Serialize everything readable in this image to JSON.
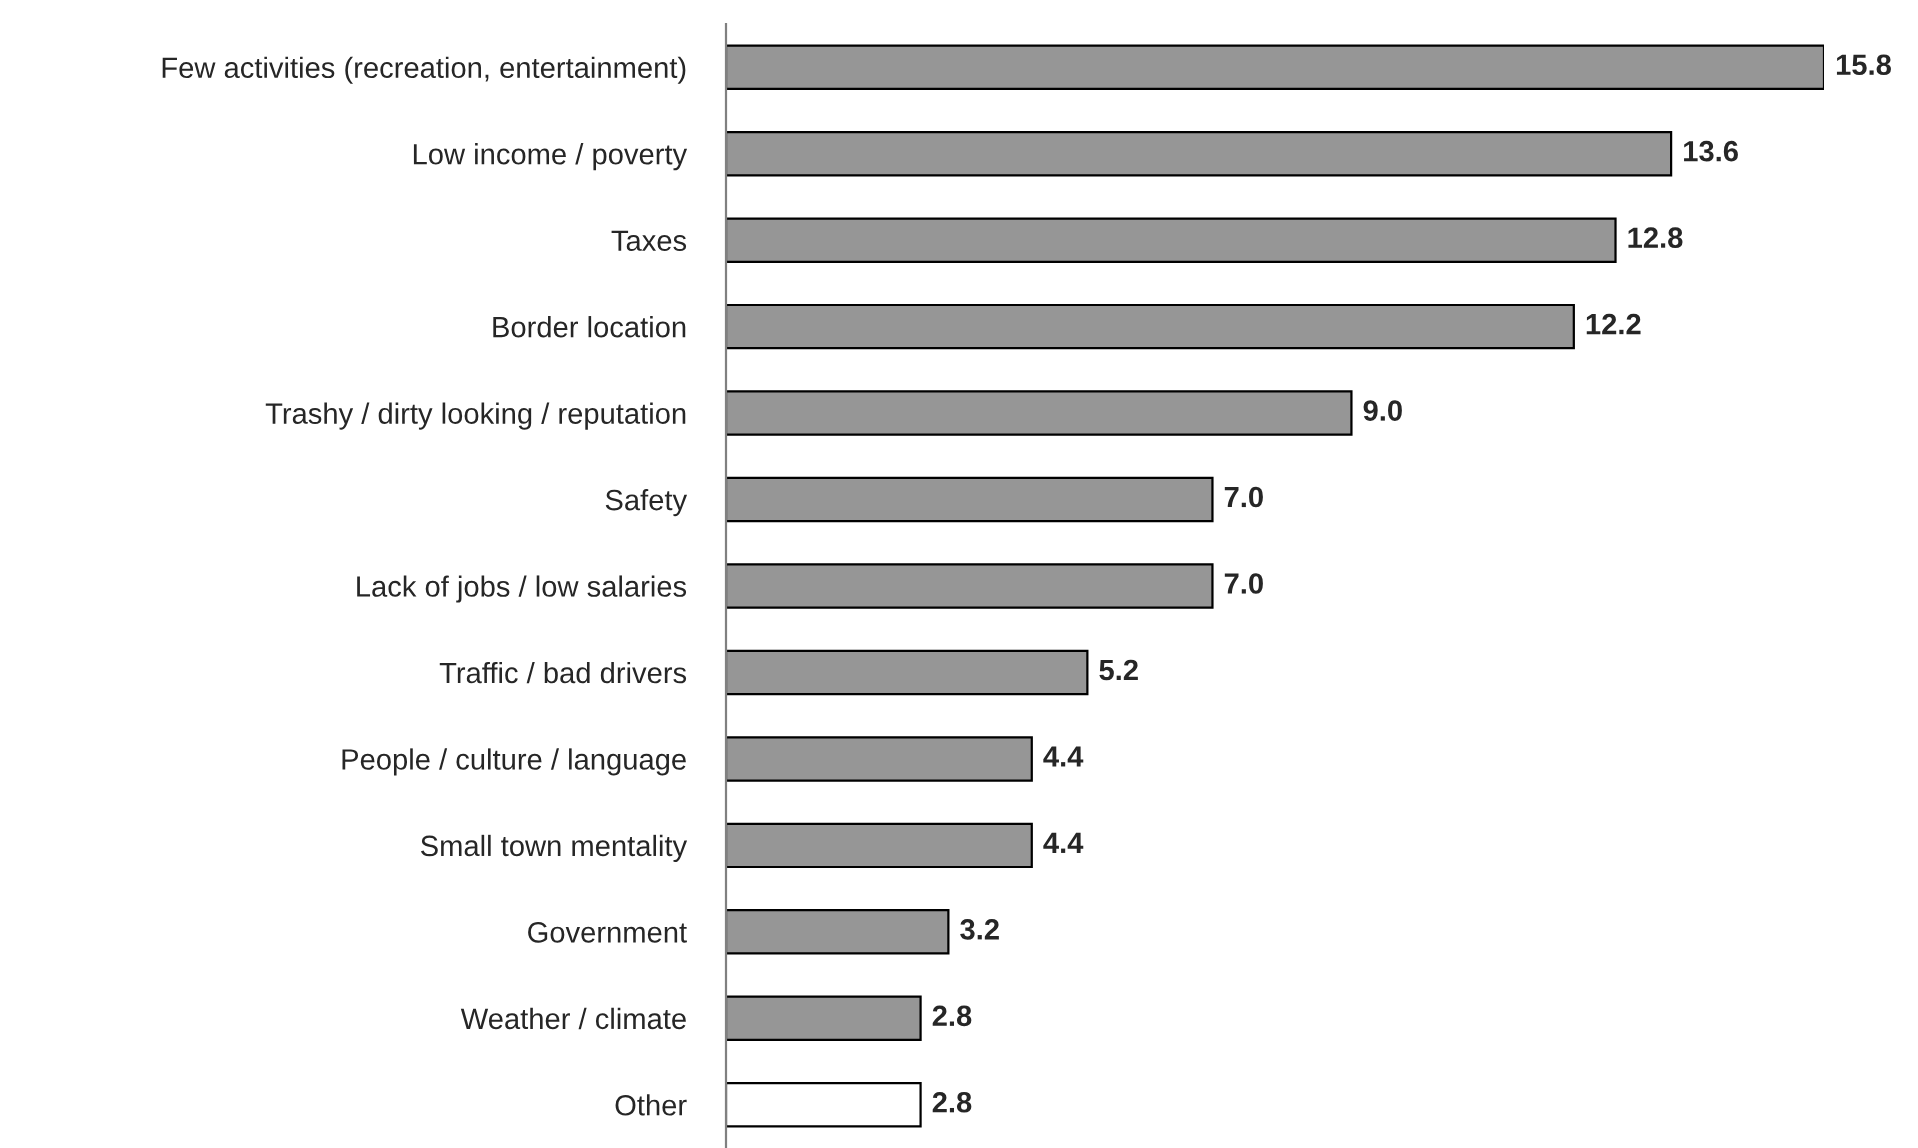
{
  "chart_data": {
    "type": "bar",
    "orientation": "horizontal",
    "value_labels": [
      "15.8",
      "13.6",
      "12.8",
      "12.2",
      "9.0",
      "7.0",
      "7.0",
      "5.2",
      "4.4",
      "4.4",
      "3.2",
      "2.8",
      "2.8"
    ],
    "categories": [
      "Few activities (recreation, entertainment)",
      "Low income / poverty",
      "Taxes",
      "Border location",
      "Trashy / dirty looking / reputation",
      "Safety",
      "Lack of jobs / low salaries",
      "Traffic / bad drivers",
      "People / culture / language",
      "Small town mentality",
      "Government",
      "Weather / climate",
      "Other"
    ],
    "values": [
      15.8,
      13.6,
      12.8,
      12.2,
      9.0,
      7.0,
      7.0,
      5.2,
      4.4,
      4.4,
      3.2,
      2.8,
      2.8
    ],
    "colors": [
      "#969696",
      "#969696",
      "#969696",
      "#969696",
      "#969696",
      "#969696",
      "#969696",
      "#969696",
      "#969696",
      "#969696",
      "#969696",
      "#969696",
      "#ffffff"
    ],
    "grid": false,
    "legend": false
  }
}
